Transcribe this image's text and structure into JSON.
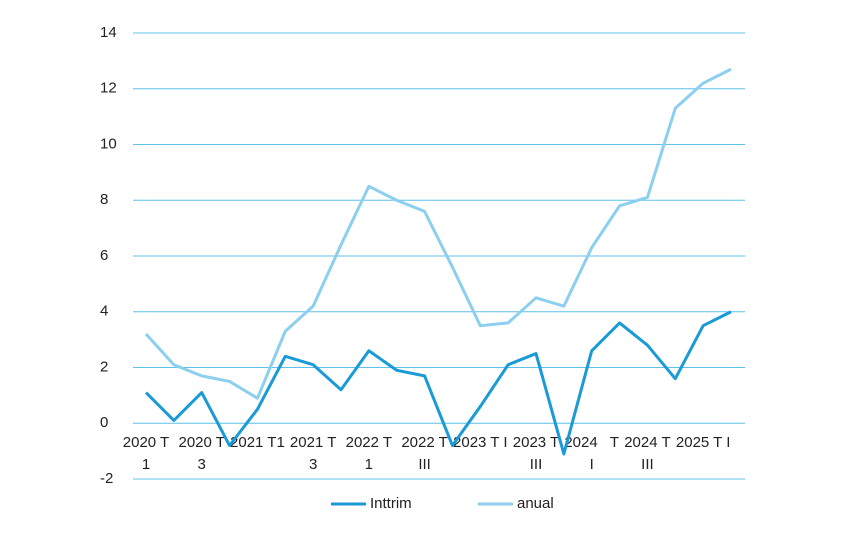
{
  "chart_data": {
    "type": "line",
    "categories": [
      [
        "2020 T",
        "1"
      ],
      null,
      [
        "2020 T",
        "3"
      ],
      null,
      [
        "2021 T1"
      ],
      null,
      [
        "2021 T",
        "3"
      ],
      null,
      [
        "2022 T",
        "1"
      ],
      null,
      [
        "2022 T",
        "III"
      ],
      null,
      [
        "2023 T I"
      ],
      null,
      [
        "2023 T",
        "III"
      ],
      null,
      [
        "2024   T",
        "I"
      ],
      null,
      [
        "2024 T",
        "III"
      ],
      null,
      [
        "2025 T I"
      ],
      null
    ],
    "series": [
      {
        "name": "Inttrim",
        "color": "#1a9ad6",
        "values": [
          1.1,
          0.1,
          1.1,
          -0.8,
          0.5,
          2.4,
          2.1,
          1.2,
          2.6,
          1.9,
          1.7,
          -0.8,
          0.6,
          2.1,
          2.5,
          -1.1,
          2.6,
          3.6,
          2.8,
          1.6,
          3.5,
          4.0
        ]
      },
      {
        "name": "anual",
        "color": "#8ccfef",
        "values": [
          3.2,
          2.1,
          1.7,
          1.5,
          0.9,
          3.3,
          4.2,
          6.4,
          8.5,
          8.0,
          7.6,
          5.6,
          3.5,
          3.6,
          4.5,
          4.2,
          6.3,
          7.8,
          8.1,
          11.3,
          12.2,
          12.7
        ]
      }
    ],
    "ylim": [
      -2,
      14
    ],
    "yticks": [
      -2,
      0,
      2,
      4,
      6,
      8,
      10,
      12,
      14
    ],
    "grid": true,
    "grid_color": "#5fc0ea",
    "legend": "bottom"
  }
}
